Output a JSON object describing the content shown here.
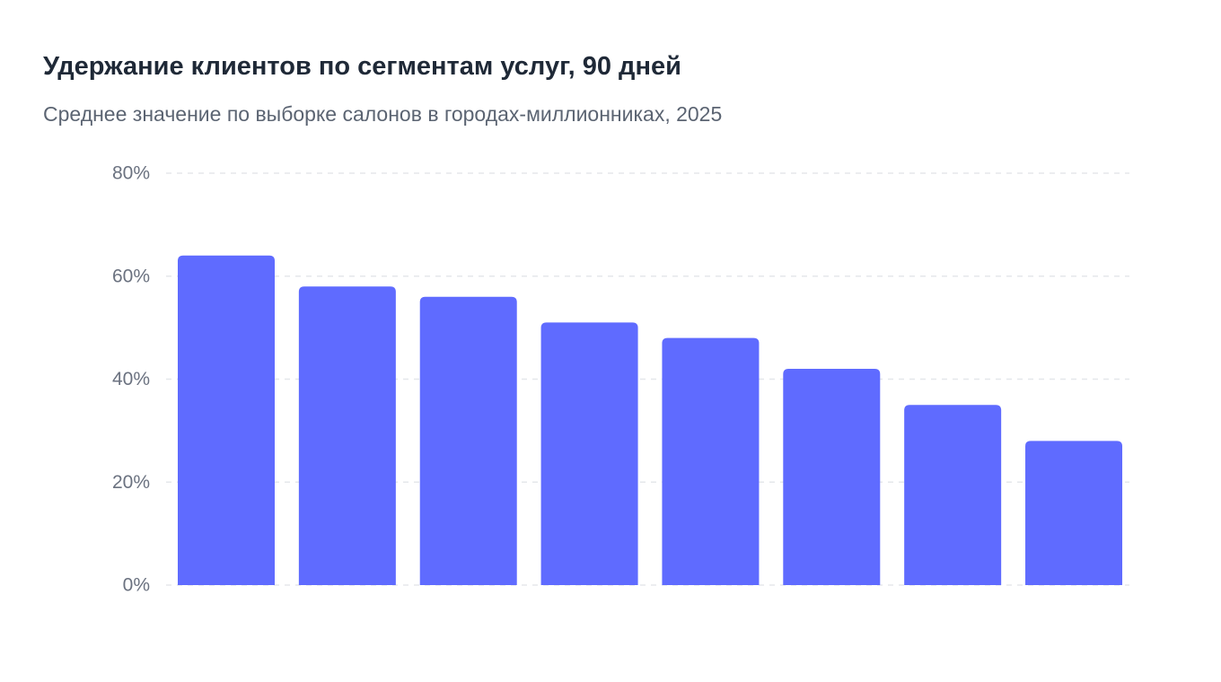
{
  "chart_data": {
    "type": "bar",
    "title": "Удержание клиентов по сегментам услуг, 90 дней",
    "subtitle": "Среднее значение по выборке салонов в городах-миллионниках, 2025",
    "xlabel": "",
    "ylabel": "",
    "y_unit": "%",
    "ylim": [
      0,
      80
    ],
    "yticks": [
      0,
      20,
      40,
      60,
      80
    ],
    "ytick_labels": [
      "0%",
      "20%",
      "40%",
      "60%",
      "80%"
    ],
    "categories": [
      "",
      "",
      "",
      "",
      "",
      "",
      "",
      ""
    ],
    "values": [
      64,
      58,
      56,
      51,
      48,
      42,
      35,
      28
    ],
    "bar_color": "#5f6bff",
    "grid": true,
    "grid_style": "dashed",
    "legend": "none"
  }
}
